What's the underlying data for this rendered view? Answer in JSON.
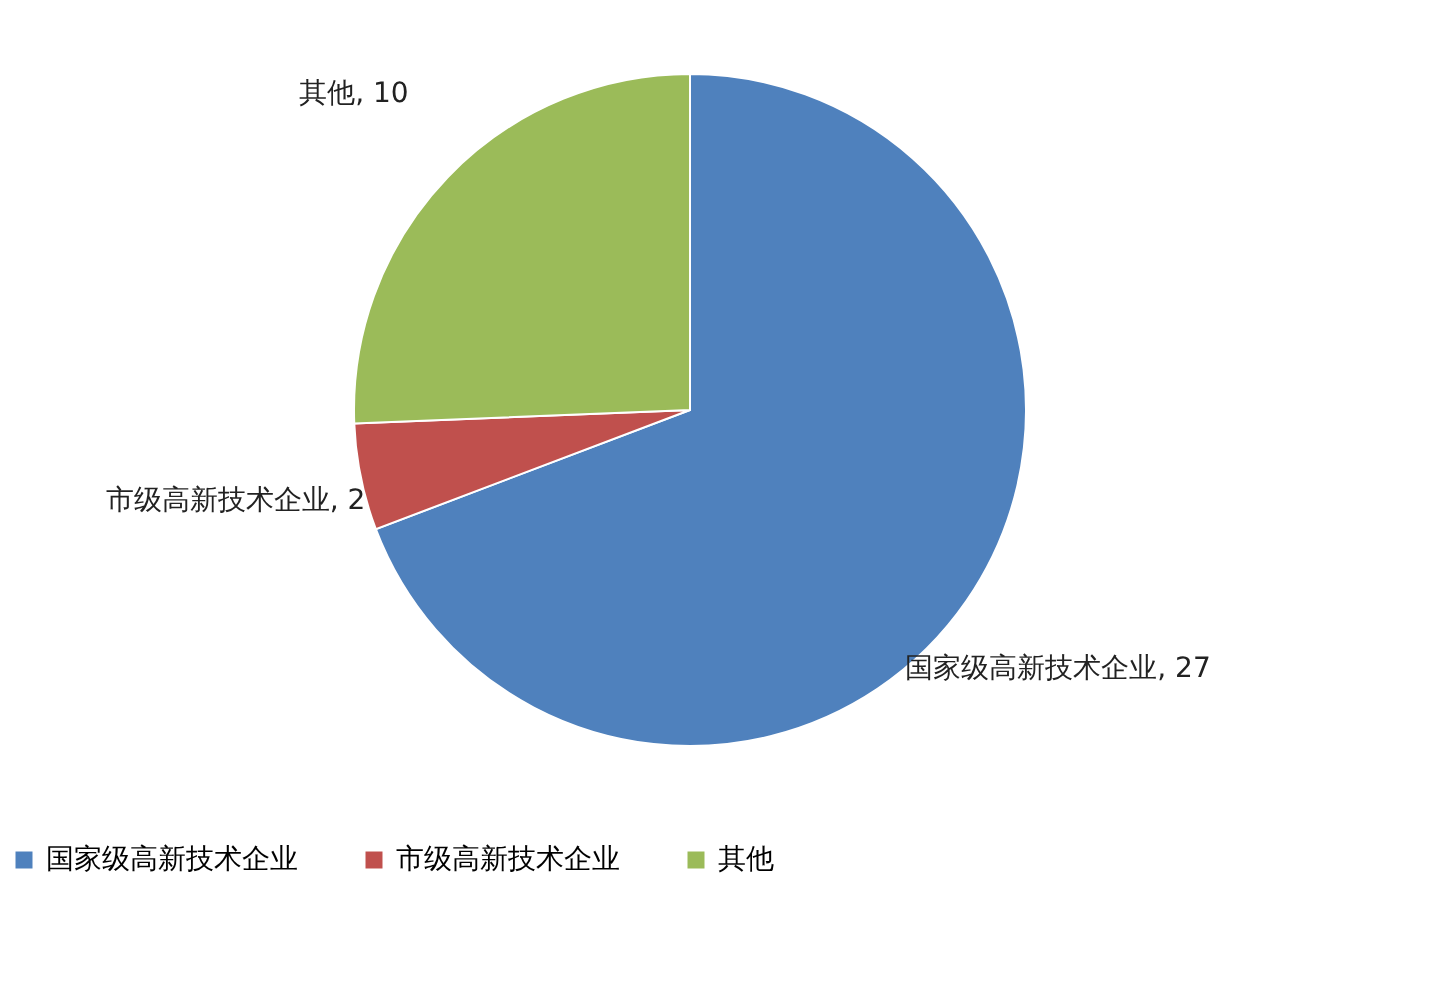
{
  "chart_data": {
    "type": "pie",
    "categories": [
      "国家级高新技术企业",
      "市级高新技术企业",
      "其他"
    ],
    "values": [
      27,
      2,
      10
    ],
    "colors": [
      "#4f81bd",
      "#c0504d",
      "#9bbb59"
    ],
    "value_labels": [
      ", 27",
      ", 2",
      ", 10"
    ],
    "legend": "bottom"
  }
}
